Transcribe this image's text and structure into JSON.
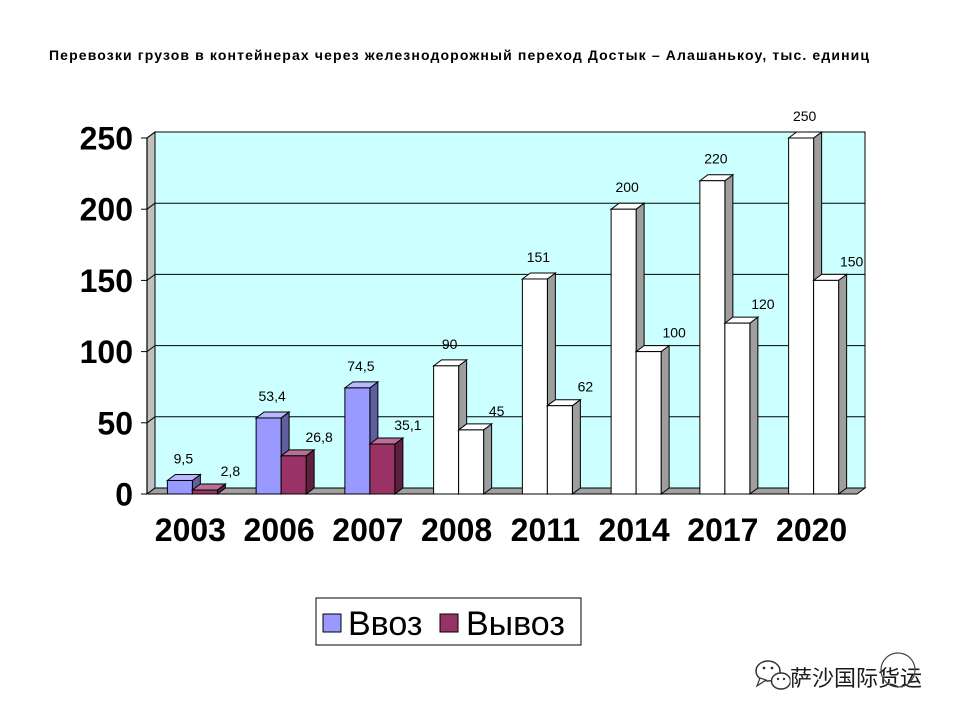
{
  "chart_data": {
    "type": "bar",
    "three_d": true,
    "title": "Перевозки грузов в контейнерах через железнодорожный переход Достык – Алашанькоу, тыс. единиц",
    "categories": [
      "2003",
      "2006",
      "2007",
      "2008",
      "2011",
      "2014",
      "2017",
      "2020"
    ],
    "series": [
      {
        "name": "Ввоз",
        "color": "#9999FF",
        "values": [
          9.5,
          53.4,
          74.5,
          90,
          151,
          200,
          220,
          250
        ],
        "labels": [
          "9,5",
          "53,4",
          "74,5",
          "90",
          "151",
          "200",
          "220",
          "250"
        ],
        "point_colors": [
          "#9999FF",
          "#9999FF",
          "#9999FF",
          "#FFFFFF",
          "#FFFFFF",
          "#FFFFFF",
          "#FFFFFF",
          "#FFFFFF"
        ]
      },
      {
        "name": "Вывоз",
        "color": "#993366",
        "values": [
          2.8,
          26.8,
          35.1,
          45,
          62,
          100,
          120,
          150
        ],
        "labels": [
          "2,8",
          "26,8",
          "35,1",
          "45",
          "62",
          "100",
          "120",
          "150"
        ],
        "point_colors": [
          "#993366",
          "#993366",
          "#993366",
          "#FFFFFF",
          "#FFFFFF",
          "#FFFFFF",
          "#FFFFFF",
          "#FFFFFF"
        ]
      }
    ],
    "ylim": [
      0,
      250
    ],
    "yticks": [
      0,
      50,
      100,
      150,
      200,
      250
    ],
    "grid": true,
    "legend": "bottom",
    "wall_color": "#CCFFFF",
    "side_wall_color": "#C0C0C0",
    "floor_color": "#A0A0A0"
  },
  "watermark": {
    "text": "萨沙国际货运",
    "logo_icon": "wechat-logo-icon"
  }
}
